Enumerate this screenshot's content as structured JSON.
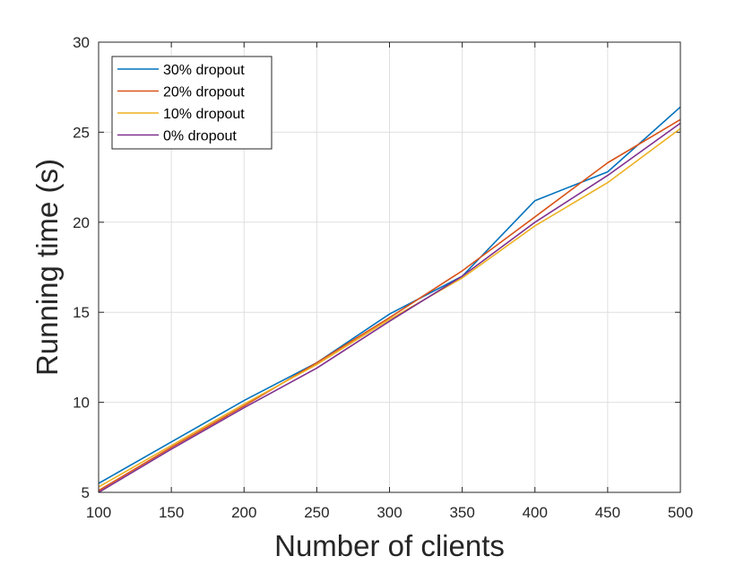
{
  "chart_data": {
    "type": "line",
    "xlabel": "Number of clients",
    "ylabel": "Running time (s)",
    "xlim": [
      100,
      500
    ],
    "ylim": [
      5,
      30
    ],
    "xticks": [
      100,
      150,
      200,
      250,
      300,
      350,
      400,
      450,
      500
    ],
    "yticks": [
      5,
      10,
      15,
      20,
      25,
      30
    ],
    "grid": true,
    "legend_position": "top-left",
    "x": [
      100,
      150,
      200,
      250,
      300,
      350,
      400,
      450,
      500
    ],
    "series": [
      {
        "name": "30% dropout",
        "color": "#0072BD",
        "values": [
          5.5,
          7.8,
          10.1,
          12.2,
          14.9,
          17.0,
          21.2,
          22.8,
          26.4
        ]
      },
      {
        "name": "20% dropout",
        "color": "#D95319",
        "values": [
          5.1,
          7.5,
          9.8,
          12.2,
          14.7,
          17.3,
          20.3,
          23.3,
          25.7
        ]
      },
      {
        "name": "10% dropout",
        "color": "#EDB120",
        "values": [
          5.3,
          7.6,
          9.9,
          12.1,
          14.6,
          16.9,
          19.8,
          22.2,
          25.2
        ]
      },
      {
        "name": "0% dropout",
        "color": "#7E2F8E",
        "values": [
          5.0,
          7.4,
          9.7,
          11.9,
          14.5,
          17.0,
          20.0,
          22.6,
          25.5
        ]
      }
    ]
  }
}
